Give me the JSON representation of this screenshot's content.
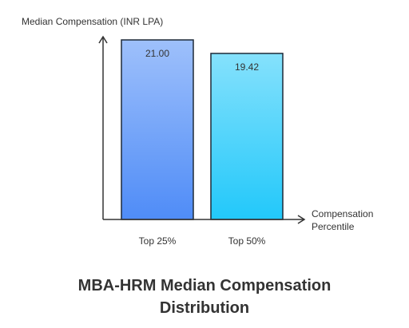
{
  "chart_data": {
    "type": "bar",
    "title": "MBA-HRM Median Compensation Distribution",
    "y_label": "Median Compensation (INR LPA)",
    "x_label": "Compensation Percentile",
    "categories": [
      "Top 25%",
      "Top 50%"
    ],
    "values": [
      21,
      19.42
    ],
    "value_labels": [
      "21.00",
      "19.42"
    ],
    "colors": [
      "#4f8cf7",
      "#22c8fa"
    ],
    "ylim": [
      0,
      21
    ]
  }
}
